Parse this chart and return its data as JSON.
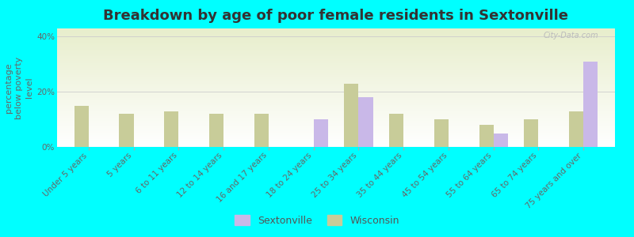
{
  "title": "Breakdown by age of poor female residents in Sextonville",
  "ylabel": "percentage\nbelow poverty\nlevel",
  "categories": [
    "Under 5 years",
    "5 years",
    "6 to 11 years",
    "12 to 14 years",
    "16 and 17 years",
    "18 to 24 years",
    "25 to 34 years",
    "35 to 44 years",
    "45 to 54 years",
    "55 to 64 years",
    "65 to 74 years",
    "75 years and over"
  ],
  "sextonville": [
    0,
    0,
    0,
    0,
    0,
    10,
    18,
    0,
    0,
    5,
    0,
    31
  ],
  "wisconsin": [
    15,
    12,
    13,
    12,
    12,
    0,
    23,
    12,
    10,
    8,
    10,
    13
  ],
  "sextonville_color": "#c9b8e8",
  "wisconsin_color": "#c8cc99",
  "background_color": "#00ffff",
  "ylim": [
    0,
    43
  ],
  "yticks": [
    0,
    20,
    40
  ],
  "ytick_labels": [
    "0%",
    "20%",
    "40%"
  ],
  "bar_width": 0.32,
  "title_fontsize": 13,
  "axis_label_fontsize": 8,
  "tick_fontsize": 7.5,
  "watermark": "City-Data.com"
}
